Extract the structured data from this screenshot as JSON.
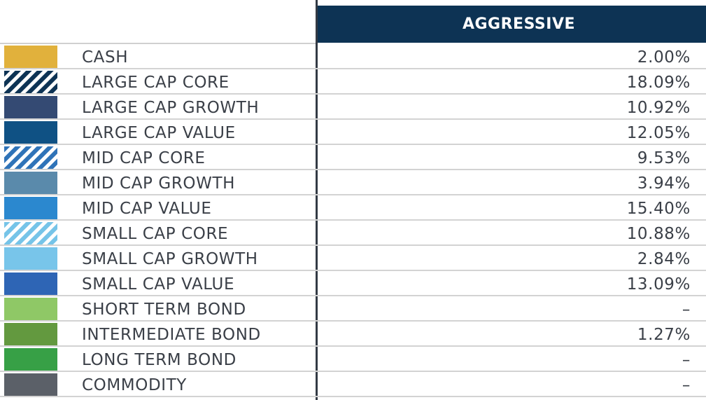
{
  "chart_data": {
    "type": "table",
    "header": "AGGRESSIVE",
    "rows": [
      {
        "label": "CASH",
        "value": "2.00%",
        "color": "#e1b13c",
        "pattern": "solid"
      },
      {
        "label": "LARGE CAP CORE",
        "value": "18.09%",
        "color": "#0d3354",
        "pattern": "hatch"
      },
      {
        "label": "LARGE CAP GROWTH",
        "value": "10.92%",
        "color": "#344a73",
        "pattern": "solid"
      },
      {
        "label": "LARGE CAP VALUE",
        "value": "12.05%",
        "color": "#0f5184",
        "pattern": "solid"
      },
      {
        "label": "MID CAP CORE",
        "value": "9.53%",
        "color": "#2f73b8",
        "pattern": "hatch"
      },
      {
        "label": "MID CAP GROWTH",
        "value": "3.94%",
        "color": "#5a8aab",
        "pattern": "solid"
      },
      {
        "label": "MID CAP VALUE",
        "value": "15.40%",
        "color": "#2b88cf",
        "pattern": "solid"
      },
      {
        "label": "SMALL CAP CORE",
        "value": "10.88%",
        "color": "#76c4e8",
        "pattern": "hatch"
      },
      {
        "label": "SMALL CAP GROWTH",
        "value": "2.84%",
        "color": "#78c5ea",
        "pattern": "solid"
      },
      {
        "label": "SMALL CAP VALUE",
        "value": "13.09%",
        "color": "#2e65b5",
        "pattern": "solid"
      },
      {
        "label": "SHORT TERM BOND",
        "value": "–",
        "color": "#8fc866",
        "pattern": "solid"
      },
      {
        "label": "INTERMEDIATE BOND",
        "value": "1.27%",
        "color": "#63993f",
        "pattern": "solid"
      },
      {
        "label": "LONG TERM BOND",
        "value": "–",
        "color": "#37a046",
        "pattern": "solid"
      },
      {
        "label": "COMMODITY",
        "value": "–",
        "color": "#5b6068",
        "pattern": "solid"
      }
    ]
  }
}
